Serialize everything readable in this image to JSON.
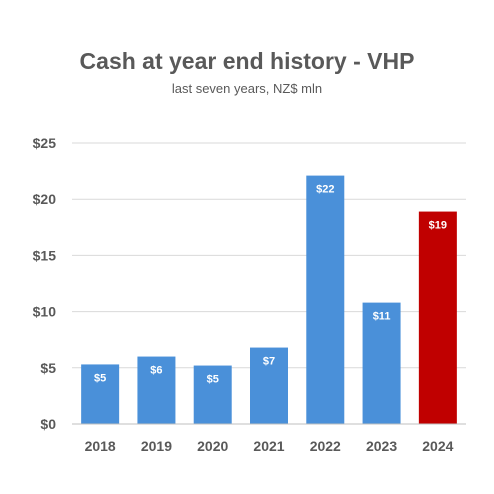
{
  "chart_data": {
    "type": "bar",
    "title": "Cash at year end history - VHP",
    "subtitle": "last seven years, NZ$ mln",
    "xlabel": "",
    "ylabel": "",
    "categories": [
      "2018",
      "2019",
      "2020",
      "2021",
      "2022",
      "2023",
      "2024"
    ],
    "values": [
      5.3,
      6.0,
      5.2,
      6.8,
      22.1,
      10.8,
      18.9
    ],
    "data_labels": [
      "$5",
      "$6",
      "$5",
      "$7",
      "$22",
      "$11",
      "$19"
    ],
    "bar_colors": [
      "#4a90d9",
      "#4a90d9",
      "#4a90d9",
      "#4a90d9",
      "#4a90d9",
      "#4a90d9",
      "#c00000"
    ],
    "ylim": [
      0,
      25
    ],
    "yticks": [
      0,
      5,
      10,
      15,
      20,
      25
    ],
    "ytick_labels": [
      "$0",
      "$5",
      "$10",
      "$15",
      "$20",
      "$25"
    ],
    "grid": true,
    "legend": "none"
  }
}
